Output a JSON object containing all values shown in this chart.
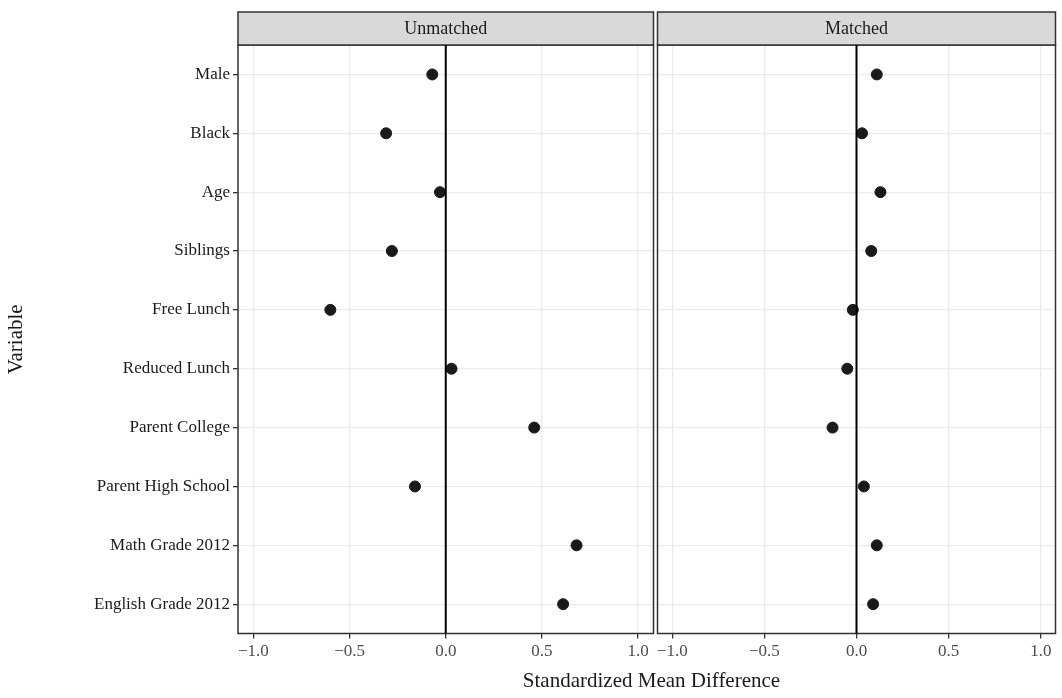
{
  "chart_data": [
    {
      "type": "scatter",
      "orientation": "horizontal",
      "title": "Unmatched",
      "xlabel": "Standardized Mean Difference",
      "ylabel": "Variable",
      "categories": [
        "Male",
        "Black",
        "Age",
        "Siblings",
        "Free Lunch",
        "Reduced Lunch",
        "Parent College",
        "Parent High School",
        "Math Grade 2012",
        "English Grade 2012"
      ],
      "series": [
        {
          "color": "#1a1a1a",
          "values": [
            -0.07,
            -0.31,
            -0.03,
            -0.28,
            -0.6,
            0.03,
            0.46,
            -0.16,
            0.68,
            0.61
          ]
        }
      ],
      "xlim": [
        -1.08,
        1.08
      ],
      "xticks": [
        {
          "value": -1,
          "label": "−1.0"
        },
        {
          "value": -0.5,
          "label": "−0.5"
        },
        {
          "value": 0,
          "label": "0.0"
        },
        {
          "value": 0.5,
          "label": "0.5"
        },
        {
          "value": 1,
          "label": "1.0"
        }
      ],
      "ref_lines": [
        {
          "axis": "x",
          "value": 0,
          "color": "#000000"
        }
      ],
      "grid": true,
      "marker": "circle"
    },
    {
      "type": "scatter",
      "orientation": "horizontal",
      "title": "Matched",
      "categories": [
        null,
        null,
        null,
        null,
        null,
        null,
        null,
        null,
        null,
        null
      ],
      "series": [
        {
          "color": "#1a1a1a",
          "values": [
            0.11,
            0.03,
            0.13,
            0.08,
            -0.02,
            -0.05,
            -0.13,
            0.04,
            0.11,
            0.09
          ]
        }
      ],
      "xlim": [
        -1.08,
        1.08
      ],
      "xticks": [
        {
          "value": -1,
          "label": "−1.0"
        },
        {
          "value": -0.5,
          "label": "−0.5"
        },
        {
          "value": 0,
          "label": "0.0"
        },
        {
          "value": 0.5,
          "label": "0.5"
        },
        {
          "value": 1,
          "label": "1.0"
        }
      ],
      "ref_lines": [
        {
          "axis": "x",
          "value": 0,
          "color": "#000000"
        }
      ],
      "grid": true,
      "marker": "circle",
      "tick_labels": "x"
    }
  ]
}
